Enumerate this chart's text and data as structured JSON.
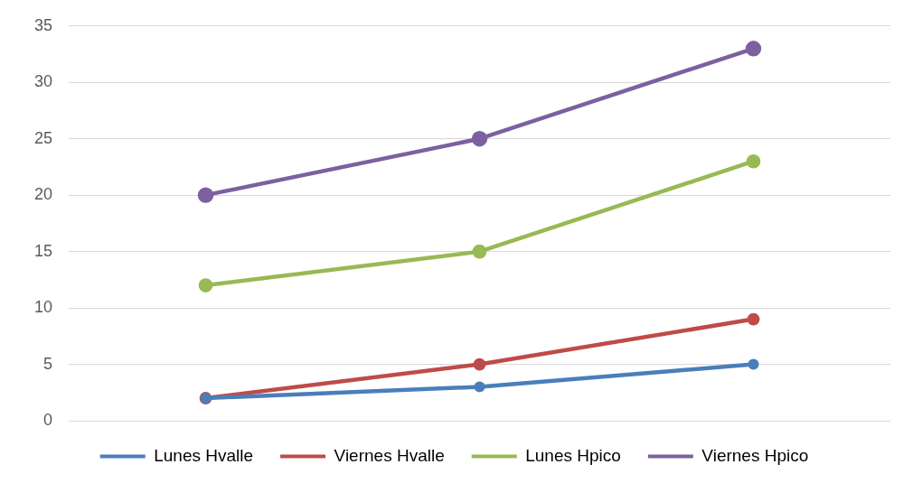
{
  "chart_data": {
    "type": "line",
    "categories": [
      null,
      null,
      null
    ],
    "series": [
      {
        "name": "Lunes Hvalle",
        "color": "#4a7ebb",
        "values": [
          2,
          3,
          5
        ]
      },
      {
        "name": "Viernes Hvalle",
        "color": "#be4b48",
        "values": [
          2,
          5,
          9
        ]
      },
      {
        "name": "Lunes Hpico",
        "color": "#98b954",
        "values": [
          12,
          15,
          23
        ]
      },
      {
        "name": "Viernes Hpico",
        "color": "#7d60a0",
        "values": [
          20,
          25,
          33
        ]
      }
    ],
    "ylim": [
      0,
      35
    ],
    "yticks": [
      0,
      5,
      10,
      15,
      20,
      25,
      30,
      35
    ],
    "grid": "y",
    "legend": "bottom",
    "marker": "circle",
    "line_style": "solid",
    "tick_labels": "y"
  }
}
